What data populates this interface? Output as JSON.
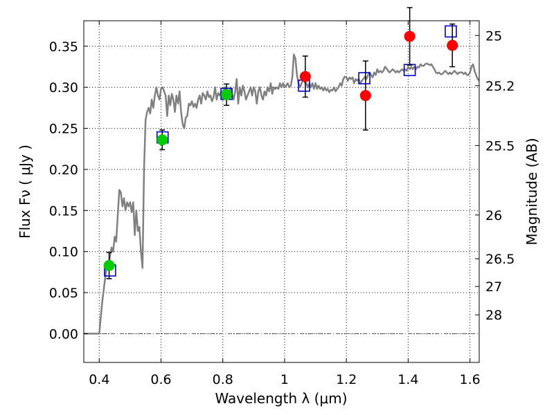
{
  "chart_data": {
    "type": "scatter",
    "title": "",
    "xlabel": "Wavelength  λ (μm)",
    "ylabel": "Flux  Fν  ( μJy )",
    "ylabel_right": "Magnitude (AB)",
    "xlim": [
      0.35,
      1.63
    ],
    "ylim": [
      -0.035,
      0.381
    ],
    "grid": true,
    "x_ticks": [
      0.4,
      0.6,
      0.8,
      1.0,
      1.2,
      1.4,
      1.6
    ],
    "x_tick_labels": [
      "0.4",
      "0.6",
      "0.8",
      "1",
      "1.2",
      "1.4",
      "1.6"
    ],
    "y_ticks": [
      0.0,
      0.05,
      0.1,
      0.15,
      0.2,
      0.25,
      0.3,
      0.35
    ],
    "y_tick_labels": [
      "0.00",
      "0.05",
      "0.10",
      "0.15",
      "0.20",
      "0.25",
      "0.30",
      "0.35"
    ],
    "right_ticks": [
      {
        "label": "25",
        "flux": 0.3631
      },
      {
        "label": "25.2",
        "flux": 0.302
      },
      {
        "label": "25.5",
        "flux": 0.2291
      },
      {
        "label": "26",
        "flux": 0.1445
      },
      {
        "label": "26.5",
        "flux": 0.0912
      },
      {
        "label": "27",
        "flux": 0.0575
      },
      {
        "label": "28",
        "flux": 0.0229
      }
    ],
    "series": [
      {
        "style": "line",
        "color": "#808080",
        "points": [
          [
            0.35,
            0.0
          ],
          [
            0.4,
            0.0
          ],
          [
            0.405,
            0.02
          ],
          [
            0.41,
            0.04
          ],
          [
            0.415,
            0.055
          ],
          [
            0.42,
            0.07
          ],
          [
            0.425,
            0.085
          ],
          [
            0.43,
            0.08
          ],
          [
            0.435,
            0.095
          ],
          [
            0.44,
            0.105
          ],
          [
            0.445,
            0.1
          ],
          [
            0.45,
            0.118
          ],
          [
            0.455,
            0.112
          ],
          [
            0.46,
            0.145
          ],
          [
            0.465,
            0.175
          ],
          [
            0.47,
            0.172
          ],
          [
            0.475,
            0.155
          ],
          [
            0.48,
            0.165
          ],
          [
            0.485,
            0.15
          ],
          [
            0.49,
            0.16
          ],
          [
            0.495,
            0.155
          ],
          [
            0.5,
            0.16
          ],
          [
            0.505,
            0.148
          ],
          [
            0.51,
            0.16
          ],
          [
            0.515,
            0.12
          ],
          [
            0.52,
            0.15
          ],
          [
            0.525,
            0.125
          ],
          [
            0.53,
            0.13
          ],
          [
            0.535,
            0.1
          ],
          [
            0.54,
            0.08
          ],
          [
            0.545,
            0.2
          ],
          [
            0.55,
            0.26
          ],
          [
            0.555,
            0.27
          ],
          [
            0.56,
            0.275
          ],
          [
            0.565,
            0.268
          ],
          [
            0.57,
            0.285
          ],
          [
            0.575,
            0.275
          ],
          [
            0.58,
            0.29
          ],
          [
            0.585,
            0.3
          ],
          [
            0.59,
            0.29
          ],
          [
            0.595,
            0.285
          ],
          [
            0.6,
            0.298
          ],
          [
            0.605,
            0.3
          ],
          [
            0.61,
            0.295
          ],
          [
            0.615,
            0.29
          ],
          [
            0.62,
            0.265
          ],
          [
            0.625,
            0.29
          ],
          [
            0.63,
            0.278
          ],
          [
            0.635,
            0.292
          ],
          [
            0.64,
            0.285
          ],
          [
            0.645,
            0.27
          ],
          [
            0.65,
            0.29
          ],
          [
            0.655,
            0.28
          ],
          [
            0.66,
            0.295
          ],
          [
            0.665,
            0.27
          ],
          [
            0.67,
            0.255
          ],
          [
            0.675,
            0.25
          ],
          [
            0.68,
            0.263
          ],
          [
            0.685,
            0.265
          ],
          [
            0.69,
            0.28
          ],
          [
            0.695,
            0.278
          ],
          [
            0.7,
            0.283
          ],
          [
            0.705,
            0.276
          ],
          [
            0.71,
            0.28
          ],
          [
            0.715,
            0.275
          ],
          [
            0.72,
            0.285
          ],
          [
            0.725,
            0.29
          ],
          [
            0.73,
            0.28
          ],
          [
            0.735,
            0.293
          ],
          [
            0.74,
            0.29
          ],
          [
            0.745,
            0.285
          ],
          [
            0.75,
            0.295
          ],
          [
            0.755,
            0.288
          ],
          [
            0.76,
            0.29
          ],
          [
            0.765,
            0.283
          ],
          [
            0.77,
            0.288
          ],
          [
            0.775,
            0.3
          ],
          [
            0.78,
            0.285
          ],
          [
            0.785,
            0.293
          ],
          [
            0.79,
            0.29
          ],
          [
            0.795,
            0.295
          ],
          [
            0.8,
            0.285
          ],
          [
            0.805,
            0.3
          ],
          [
            0.81,
            0.29
          ],
          [
            0.815,
            0.295
          ],
          [
            0.82,
            0.288
          ],
          [
            0.825,
            0.3
          ],
          [
            0.83,
            0.292
          ],
          [
            0.835,
            0.285
          ],
          [
            0.84,
            0.295
          ],
          [
            0.845,
            0.31
          ],
          [
            0.85,
            0.28
          ],
          [
            0.855,
            0.3
          ],
          [
            0.86,
            0.29
          ],
          [
            0.865,
            0.302
          ],
          [
            0.87,
            0.295
          ],
          [
            0.875,
            0.285
          ],
          [
            0.88,
            0.29
          ],
          [
            0.885,
            0.295
          ],
          [
            0.89,
            0.3
          ],
          [
            0.895,
            0.29
          ],
          [
            0.9,
            0.3
          ],
          [
            0.905,
            0.295
          ],
          [
            0.91,
            0.28
          ],
          [
            0.915,
            0.295
          ],
          [
            0.92,
            0.3
          ],
          [
            0.925,
            0.29
          ],
          [
            0.93,
            0.285
          ],
          [
            0.935,
            0.295
          ],
          [
            0.94,
            0.29
          ],
          [
            0.945,
            0.3
          ],
          [
            0.95,
            0.295
          ],
          [
            0.955,
            0.305
          ],
          [
            0.96,
            0.292
          ],
          [
            0.965,
            0.3
          ],
          [
            0.97,
            0.298
          ],
          [
            0.975,
            0.3
          ],
          [
            0.98,
            0.298
          ],
          [
            0.985,
            0.305
          ],
          [
            0.99,
            0.3
          ],
          [
            0.995,
            0.305
          ],
          [
            1.0,
            0.3
          ],
          [
            1.005,
            0.302
          ],
          [
            1.01,
            0.305
          ],
          [
            1.015,
            0.3
          ],
          [
            1.02,
            0.302
          ],
          [
            1.025,
            0.312
          ],
          [
            1.03,
            0.34
          ],
          [
            1.035,
            0.335
          ],
          [
            1.04,
            0.315
          ],
          [
            1.045,
            0.305
          ],
          [
            1.05,
            0.3
          ],
          [
            1.055,
            0.305
          ],
          [
            1.06,
            0.31
          ],
          [
            1.065,
            0.306
          ],
          [
            1.07,
            0.305
          ],
          [
            1.075,
            0.3
          ],
          [
            1.08,
            0.305
          ],
          [
            1.085,
            0.3
          ],
          [
            1.09,
            0.305
          ],
          [
            1.095,
            0.298
          ],
          [
            1.1,
            0.305
          ],
          [
            1.105,
            0.298
          ],
          [
            1.11,
            0.302
          ],
          [
            1.115,
            0.298
          ],
          [
            1.12,
            0.3
          ],
          [
            1.125,
            0.296
          ],
          [
            1.13,
            0.3
          ],
          [
            1.135,
            0.296
          ],
          [
            1.14,
            0.298
          ],
          [
            1.145,
            0.294
          ],
          [
            1.15,
            0.297
          ],
          [
            1.155,
            0.296
          ],
          [
            1.16,
            0.3
          ],
          [
            1.165,
            0.295
          ],
          [
            1.17,
            0.298
          ],
          [
            1.175,
            0.3
          ],
          [
            1.18,
            0.305
          ],
          [
            1.185,
            0.302
          ],
          [
            1.19,
            0.31
          ],
          [
            1.195,
            0.313
          ],
          [
            1.2,
            0.312
          ],
          [
            1.205,
            0.308
          ],
          [
            1.21,
            0.312
          ],
          [
            1.215,
            0.31
          ],
          [
            1.22,
            0.312
          ],
          [
            1.225,
            0.305
          ],
          [
            1.23,
            0.31
          ],
          [
            1.235,
            0.308
          ],
          [
            1.24,
            0.31
          ],
          [
            1.245,
            0.305
          ],
          [
            1.25,
            0.308
          ],
          [
            1.255,
            0.31
          ],
          [
            1.26,
            0.313
          ],
          [
            1.265,
            0.31
          ],
          [
            1.27,
            0.315
          ],
          [
            1.275,
            0.318
          ],
          [
            1.28,
            0.315
          ],
          [
            1.285,
            0.312
          ],
          [
            1.29,
            0.318
          ],
          [
            1.295,
            0.315
          ],
          [
            1.3,
            0.322
          ],
          [
            1.305,
            0.318
          ],
          [
            1.31,
            0.32
          ],
          [
            1.315,
            0.318
          ],
          [
            1.32,
            0.32
          ],
          [
            1.325,
            0.325
          ],
          [
            1.33,
            0.323
          ],
          [
            1.335,
            0.32
          ],
          [
            1.34,
            0.318
          ],
          [
            1.345,
            0.32
          ],
          [
            1.35,
            0.322
          ],
          [
            1.355,
            0.32
          ],
          [
            1.36,
            0.318
          ],
          [
            1.365,
            0.32
          ],
          [
            1.37,
            0.318
          ],
          [
            1.375,
            0.32
          ],
          [
            1.38,
            0.322
          ],
          [
            1.385,
            0.32
          ],
          [
            1.39,
            0.322
          ],
          [
            1.395,
            0.32
          ],
          [
            1.4,
            0.325
          ],
          [
            1.405,
            0.322
          ],
          [
            1.41,
            0.325
          ],
          [
            1.415,
            0.322
          ],
          [
            1.42,
            0.325
          ],
          [
            1.425,
            0.322
          ],
          [
            1.43,
            0.325
          ],
          [
            1.435,
            0.324
          ],
          [
            1.44,
            0.328
          ],
          [
            1.445,
            0.326
          ],
          [
            1.45,
            0.326
          ],
          [
            1.455,
            0.328
          ],
          [
            1.46,
            0.329
          ],
          [
            1.465,
            0.328
          ],
          [
            1.47,
            0.327
          ],
          [
            1.475,
            0.328
          ],
          [
            1.48,
            0.325
          ],
          [
            1.485,
            0.322
          ],
          [
            1.49,
            0.318
          ],
          [
            1.495,
            0.317
          ],
          [
            1.5,
            0.318
          ],
          [
            1.505,
            0.316
          ],
          [
            1.51,
            0.316
          ],
          [
            1.515,
            0.318
          ],
          [
            1.52,
            0.32
          ],
          [
            1.525,
            0.318
          ],
          [
            1.53,
            0.316
          ],
          [
            1.535,
            0.318
          ],
          [
            1.54,
            0.316
          ],
          [
            1.545,
            0.318
          ],
          [
            1.55,
            0.32
          ],
          [
            1.555,
            0.318
          ],
          [
            1.56,
            0.316
          ],
          [
            1.565,
            0.318
          ],
          [
            1.57,
            0.318
          ],
          [
            1.575,
            0.318
          ],
          [
            1.58,
            0.316
          ],
          [
            1.585,
            0.318
          ],
          [
            1.59,
            0.315
          ],
          [
            1.595,
            0.315
          ],
          [
            1.6,
            0.318
          ],
          [
            1.605,
            0.325
          ],
          [
            1.61,
            0.328
          ],
          [
            1.615,
            0.32
          ],
          [
            1.62,
            0.315
          ],
          [
            1.625,
            0.31
          ],
          [
            1.63,
            0.308
          ]
        ]
      },
      {
        "style": "open-square",
        "color": "#0000cc",
        "points": [
          [
            0.435,
            0.077
          ],
          [
            0.605,
            0.239
          ],
          [
            0.812,
            0.292
          ],
          [
            1.063,
            0.302
          ],
          [
            1.258,
            0.311
          ],
          [
            1.405,
            0.321
          ],
          [
            1.538,
            0.368
          ]
        ]
      },
      {
        "style": "filled-circle",
        "color": "#00cc00",
        "points": [
          [
            0.432,
            0.083
          ],
          [
            0.604,
            0.236
          ],
          [
            0.812,
            0.291
          ]
        ],
        "err": [
          0.016,
          0.012,
          0.013
        ]
      },
      {
        "style": "filled-circle",
        "color": "#ff0000",
        "points": [
          [
            1.067,
            0.313
          ],
          [
            1.262,
            0.29
          ],
          [
            1.405,
            0.362
          ],
          [
            1.543,
            0.351
          ]
        ],
        "err": [
          0.025,
          0.042,
          0.035,
          0.026
        ]
      }
    ]
  }
}
